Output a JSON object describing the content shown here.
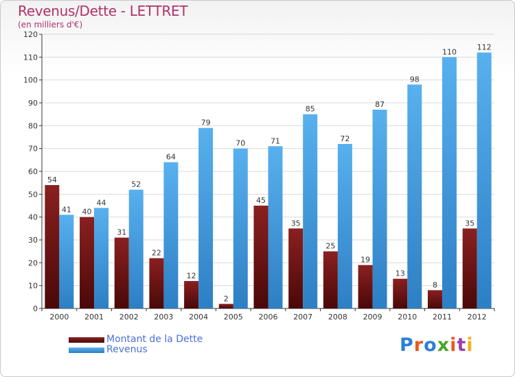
{
  "header": {
    "title": "Revenus/Dette - LETTRET",
    "subtitle": "(en milliers d'€)"
  },
  "legend": {
    "items": [
      {
        "label": "Montant de la Dette",
        "color": "#7a1818"
      },
      {
        "label": "Revenus",
        "color": "#4aa3e4"
      }
    ]
  },
  "logo": {
    "text": "Proxiti",
    "letter_colors": [
      "#2c7fd8",
      "#e85a1c",
      "#2c7fd8",
      "#4aa62a",
      "#e85a1c",
      "#9b3fb0",
      "#f2b21c"
    ]
  },
  "chart_data": {
    "type": "bar",
    "title": "Revenus/Dette - LETTRET",
    "subtitle": "(en milliers d'€)",
    "categories": [
      "2000",
      "2001",
      "2002",
      "2003",
      "2004",
      "2005",
      "2006",
      "2007",
      "2008",
      "2009",
      "2010",
      "2011",
      "2012"
    ],
    "series": [
      {
        "name": "Montant de la Dette",
        "color": "#7a1818",
        "values": [
          54,
          40,
          31,
          22,
          12,
          2,
          45,
          35,
          25,
          19,
          13,
          8,
          35
        ]
      },
      {
        "name": "Revenus",
        "color": "#4aa3e4",
        "values": [
          41,
          44,
          52,
          64,
          79,
          70,
          71,
          85,
          72,
          87,
          98,
          110,
          112
        ]
      }
    ],
    "ylim": [
      0,
      120
    ],
    "yticks": [
      0,
      10,
      20,
      30,
      40,
      50,
      60,
      70,
      80,
      90,
      100,
      110,
      120
    ],
    "grid": true,
    "legend_position": "bottom-left"
  }
}
